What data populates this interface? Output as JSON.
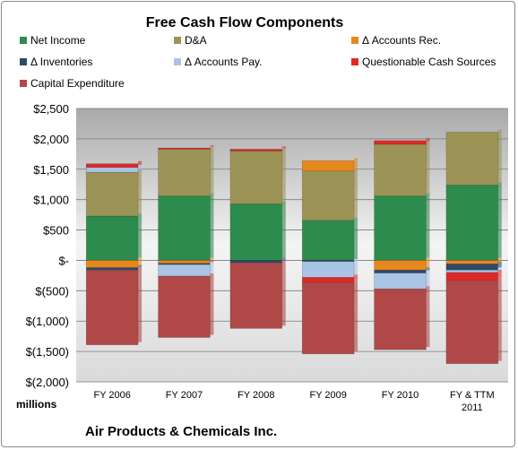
{
  "chart_data": {
    "type": "bar",
    "stacked": true,
    "title": "Free Cash Flow Components",
    "subtitle": "Air Products & Chemicals Inc.",
    "unit_label": "millions",
    "ylim": [
      -2000,
      2500
    ],
    "yticks": [
      2500,
      2000,
      1500,
      1000,
      500,
      0,
      -500,
      -1000,
      -1500,
      -2000
    ],
    "ytick_labels": [
      "$2,500",
      "$2,000",
      "$1,500",
      "$1,000",
      "$500",
      "$-",
      "$(500)",
      "$(1,000)",
      "$(1,500)",
      "$(2,000)"
    ],
    "categories": [
      "FY 2006",
      "FY 2007",
      "FY 2008",
      "FY 2009",
      "FY 2010",
      "FY & TTM 2011"
    ],
    "grid": true,
    "legend_position": "top",
    "series": [
      {
        "name": "Net Income",
        "color": "#2e8b4e",
        "values": [
          730,
          1060,
          930,
          660,
          1060,
          1240
        ]
      },
      {
        "name": "D&A",
        "color": "#9c9457",
        "values": [
          720,
          770,
          870,
          810,
          850,
          870
        ]
      },
      {
        "name": "Δ Accounts Rec.",
        "color": "#e8871e",
        "values": [
          -120,
          -50,
          0,
          170,
          -160,
          -60
        ]
      },
      {
        "name": "Δ Inventories",
        "color": "#2d4a6a",
        "values": [
          -40,
          -20,
          -40,
          -20,
          -50,
          -100
        ]
      },
      {
        "name": "Δ Accounts Pay.",
        "color": "#a9c4e4",
        "values": [
          80,
          -190,
          0,
          -260,
          -260,
          -40
        ]
      },
      {
        "name": "Questionable Cash Sources",
        "color": "#e02828",
        "values": [
          60,
          20,
          30,
          -80,
          60,
          -130
        ]
      },
      {
        "name": "Capital Expenditure",
        "color": "#b04848",
        "values": [
          -1230,
          -1010,
          -1080,
          -1180,
          -1000,
          -1370
        ]
      }
    ]
  }
}
